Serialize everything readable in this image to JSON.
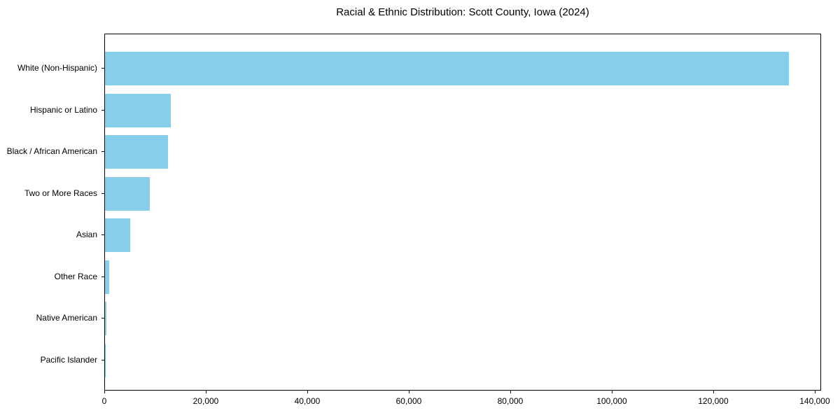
{
  "chart_data": {
    "type": "bar",
    "orientation": "horizontal",
    "title": "Racial & Ethnic Distribution: Scott County, Iowa (2024)",
    "categories": [
      "White (Non-Hispanic)",
      "Hispanic or Latino",
      "Black / African American",
      "Two or More Races",
      "Asian",
      "Other Race",
      "Native American",
      "Pacific Islander"
    ],
    "values": [
      134700,
      12900,
      12400,
      8850,
      4950,
      830,
      210,
      60
    ],
    "xlabel": "",
    "ylabel": "",
    "xlim": [
      0,
      141250
    ],
    "xticks": [
      0,
      20000,
      40000,
      60000,
      80000,
      100000,
      120000,
      140000
    ],
    "xtick_labels": [
      "0",
      "20,000",
      "40,000",
      "60,000",
      "80,000",
      "100,000",
      "120,000",
      "140,000"
    ],
    "bar_color": "#87CEEB",
    "grid": false,
    "legend": "none"
  }
}
